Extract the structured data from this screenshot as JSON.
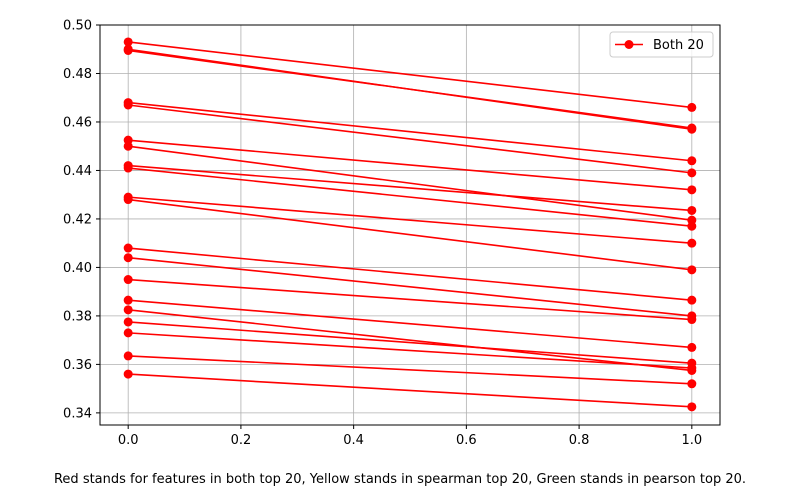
{
  "chart_data": {
    "type": "line",
    "title": "",
    "xlabel": "",
    "ylabel": "",
    "xlim": [
      -0.05,
      1.05
    ],
    "ylim": [
      0.335,
      0.5
    ],
    "xticks": [
      0.0,
      0.2,
      0.4,
      0.6,
      0.8,
      1.0
    ],
    "xtick_labels": [
      "0.0",
      "0.2",
      "0.4",
      "0.6",
      "0.8",
      "1.0"
    ],
    "yticks": [
      0.34,
      0.36,
      0.38,
      0.4,
      0.42,
      0.44,
      0.46,
      0.48,
      0.5
    ],
    "ytick_labels": [
      "0.34",
      "0.36",
      "0.38",
      "0.40",
      "0.42",
      "0.44",
      "0.46",
      "0.48",
      "0.50"
    ],
    "grid": true,
    "legend": {
      "placement": "upper-right",
      "entries": [
        "Both 20"
      ]
    },
    "color": "#ff0000",
    "x": [
      0,
      1
    ],
    "series": [
      {
        "values": [
          0.493,
          0.466
        ]
      },
      {
        "values": [
          0.49,
          0.457
        ]
      },
      {
        "values": [
          0.4895,
          0.4575
        ]
      },
      {
        "values": [
          0.468,
          0.444
        ]
      },
      {
        "values": [
          0.467,
          0.439
        ]
      },
      {
        "values": [
          0.4525,
          0.432
        ]
      },
      {
        "values": [
          0.45,
          0.4195
        ]
      },
      {
        "values": [
          0.442,
          0.4235
        ]
      },
      {
        "values": [
          0.441,
          0.417
        ]
      },
      {
        "values": [
          0.429,
          0.41
        ]
      },
      {
        "values": [
          0.428,
          0.399
        ]
      },
      {
        "values": [
          0.408,
          0.3865
        ]
      },
      {
        "values": [
          0.404,
          0.38
        ]
      },
      {
        "values": [
          0.395,
          0.3785
        ]
      },
      {
        "values": [
          0.3865,
          0.367
        ]
      },
      {
        "values": [
          0.3825,
          0.3575
        ]
      },
      {
        "values": [
          0.3775,
          0.3605
        ]
      },
      {
        "values": [
          0.373,
          0.3585
        ]
      },
      {
        "values": [
          0.3635,
          0.352
        ]
      },
      {
        "values": [
          0.356,
          0.3425
        ]
      }
    ]
  },
  "caption": "Red stands for features in both top 20, Yellow stands in spearman top 20, Green stands in pearson top 20."
}
